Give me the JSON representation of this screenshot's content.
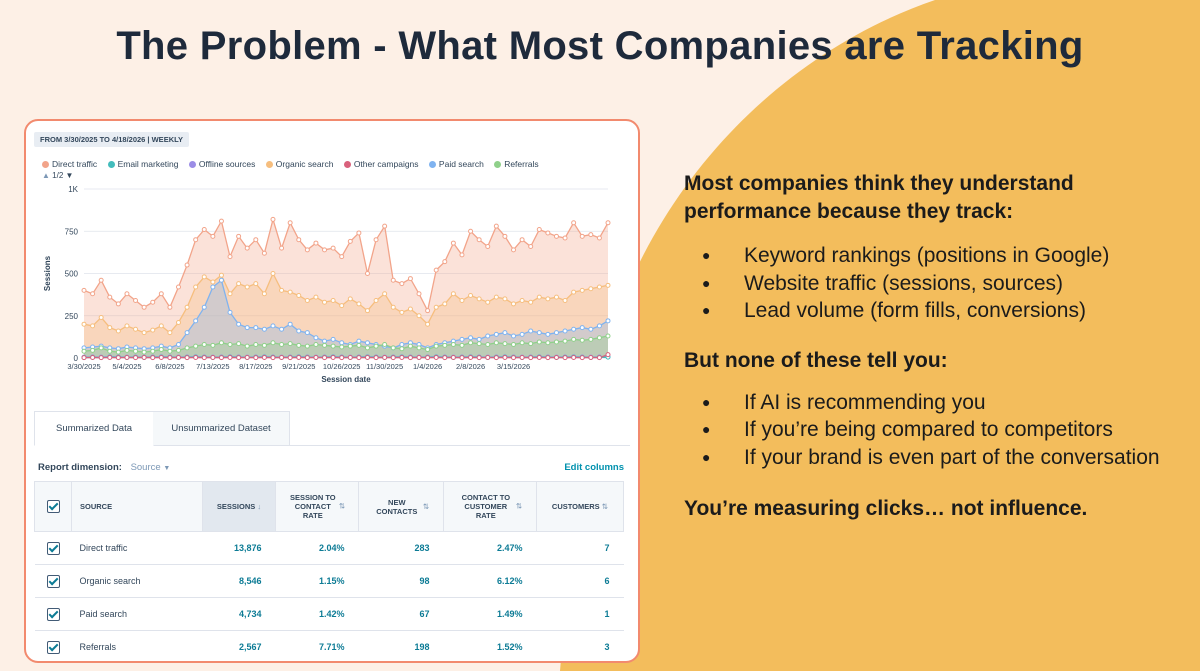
{
  "slide": {
    "title": "The Problem - What Most Companies are Tracking",
    "lead": "Most companies think they understand performance because they track:",
    "tracked": [
      "Keyword rankings (positions in Google)",
      "Website traffic (sessions, sources)",
      "Lead volume (form fills, conversions)"
    ],
    "subhead": "But none of these tell you:",
    "unknowns": [
      "If AI is recommending you",
      "If you’re being compared to competitors",
      "If your brand is even part of the conversation"
    ],
    "closing": "You’re measuring clicks… not influence.",
    "colors": {
      "background": "#fdf0e6",
      "accent": "#f3bd5c",
      "screenshot_border": "#f28a6e"
    }
  },
  "report": {
    "date_range": "FROM 3/30/2025 TO 4/18/2026 | WEEKLY",
    "pager": "1/2",
    "tabs": [
      "Summarized Data",
      "Unsummarized Dataset"
    ],
    "dimension_label": "Report dimension:",
    "dimension_value": "Source",
    "edit_columns": "Edit columns",
    "columns": {
      "source": "SOURCE",
      "sessions": "SESSIONS",
      "session_to_contact": "SESSION TO CONTACT RATE",
      "new_contacts": "NEW CONTACTS",
      "contact_to_customer": "CONTACT TO CUSTOMER RATE",
      "customers": "CUSTOMERS"
    },
    "rows": [
      {
        "source": "Direct traffic",
        "sessions": "13,876",
        "session_to_contact": "2.04%",
        "new_contacts": "283",
        "contact_to_customer": "2.47%",
        "customers": "7"
      },
      {
        "source": "Organic search",
        "sessions": "8,546",
        "session_to_contact": "1.15%",
        "new_contacts": "98",
        "contact_to_customer": "6.12%",
        "customers": "6"
      },
      {
        "source": "Paid search",
        "sessions": "4,734",
        "session_to_contact": "1.42%",
        "new_contacts": "67",
        "contact_to_customer": "1.49%",
        "customers": "1"
      },
      {
        "source": "Referrals",
        "sessions": "2,567",
        "session_to_contact": "7.71%",
        "new_contacts": "198",
        "contact_to_customer": "1.52%",
        "customers": "3"
      }
    ]
  },
  "chart_data": {
    "type": "area",
    "xlabel": "Session date",
    "ylabel": "Sessions",
    "ylim": [
      0,
      1000
    ],
    "y_ticks": [
      "0",
      "250",
      "500",
      "750",
      "1K"
    ],
    "x_tick_labels": [
      "3/30/2025",
      "5/4/2025",
      "6/8/2025",
      "7/13/2025",
      "8/17/2025",
      "9/21/2025",
      "10/26/2025",
      "11/30/2025",
      "1/4/2026",
      "2/8/2026",
      "3/15/2026"
    ],
    "x_tick_every": 5,
    "legend_position": "top-left",
    "grid": true,
    "series": [
      {
        "name": "Direct traffic",
        "color": "#f2a48a",
        "values": [
          400,
          380,
          460,
          360,
          320,
          380,
          340,
          300,
          330,
          380,
          300,
          420,
          550,
          700,
          760,
          720,
          810,
          600,
          720,
          650,
          700,
          620,
          820,
          650,
          800,
          700,
          640,
          680,
          640,
          650,
          600,
          690,
          740,
          500,
          700,
          780,
          460,
          440,
          470,
          380,
          280,
          520,
          570,
          680,
          610,
          750,
          700,
          660,
          780,
          720,
          640,
          700,
          660,
          760,
          740,
          720,
          710,
          800,
          720,
          730,
          710,
          800
        ]
      },
      {
        "name": "Email marketing",
        "color": "#43bcbc",
        "values": [
          3,
          4,
          3,
          5,
          4,
          3,
          4,
          3,
          4,
          5,
          4,
          3,
          4,
          5,
          4,
          3,
          4,
          5,
          4,
          3,
          4,
          5,
          4,
          3,
          4,
          5,
          4,
          3,
          4,
          5,
          4,
          3,
          4,
          5,
          4,
          3,
          4,
          5,
          4,
          3,
          4,
          5,
          4,
          3,
          4,
          5,
          4,
          3,
          4,
          5,
          4,
          3,
          4,
          5,
          4,
          3,
          4,
          5,
          4,
          3,
          4,
          5
        ]
      },
      {
        "name": "Offline sources",
        "color": "#9b8de6",
        "values": [
          5,
          6,
          5,
          7,
          6,
          5,
          6,
          5,
          6,
          7,
          6,
          5,
          6,
          7,
          6,
          5,
          6,
          7,
          6,
          5,
          6,
          7,
          6,
          5,
          6,
          7,
          6,
          5,
          6,
          7,
          6,
          5,
          6,
          7,
          6,
          5,
          6,
          7,
          6,
          5,
          6,
          7,
          6,
          5,
          6,
          7,
          6,
          5,
          6,
          7,
          6,
          5,
          6,
          7,
          6,
          5,
          6,
          7,
          6,
          5,
          6,
          7
        ]
      },
      {
        "name": "Organic search",
        "color": "#f6be7e",
        "values": [
          200,
          190,
          240,
          180,
          160,
          190,
          170,
          150,
          165,
          190,
          150,
          210,
          300,
          420,
          480,
          450,
          490,
          380,
          440,
          420,
          440,
          380,
          500,
          400,
          390,
          370,
          340,
          360,
          330,
          340,
          310,
          350,
          320,
          280,
          340,
          380,
          300,
          270,
          290,
          250,
          200,
          300,
          320,
          380,
          340,
          370,
          350,
          330,
          360,
          350,
          320,
          340,
          330,
          360,
          350,
          360,
          340,
          390,
          400,
          410,
          420,
          430
        ]
      },
      {
        "name": "Other campaigns",
        "color": "#d9617c",
        "values": [
          2,
          3,
          2,
          3,
          2,
          3,
          2,
          3,
          2,
          3,
          2,
          3,
          2,
          3,
          2,
          3,
          2,
          3,
          2,
          3,
          2,
          3,
          2,
          3,
          2,
          3,
          2,
          3,
          2,
          3,
          2,
          3,
          2,
          3,
          2,
          3,
          2,
          3,
          2,
          3,
          2,
          3,
          2,
          3,
          2,
          3,
          2,
          3,
          2,
          3,
          2,
          3,
          2,
          3,
          2,
          3,
          2,
          3,
          2,
          3,
          2,
          20
        ]
      },
      {
        "name": "Paid search",
        "color": "#7fb3f0",
        "values": [
          60,
          65,
          70,
          60,
          55,
          65,
          60,
          55,
          60,
          70,
          60,
          80,
          150,
          220,
          300,
          420,
          460,
          270,
          200,
          180,
          180,
          170,
          190,
          170,
          200,
          160,
          150,
          120,
          100,
          110,
          90,
          80,
          100,
          90,
          80,
          70,
          60,
          80,
          90,
          80,
          60,
          80,
          90,
          100,
          110,
          120,
          110,
          130,
          140,
          150,
          130,
          140,
          160,
          150,
          140,
          150,
          160,
          170,
          180,
          170,
          190,
          220
        ]
      },
      {
        "name": "Referrals",
        "color": "#8fd08a",
        "values": [
          40,
          45,
          60,
          40,
          35,
          45,
          40,
          35,
          40,
          50,
          40,
          45,
          60,
          70,
          80,
          75,
          90,
          80,
          85,
          70,
          80,
          75,
          90,
          80,
          85,
          75,
          70,
          80,
          75,
          70,
          65,
          70,
          75,
          60,
          70,
          80,
          60,
          55,
          70,
          60,
          50,
          70,
          75,
          80,
          75,
          90,
          85,
          80,
          90,
          85,
          80,
          90,
          85,
          95,
          90,
          95,
          100,
          110,
          105,
          110,
          120,
          130
        ]
      }
    ]
  }
}
